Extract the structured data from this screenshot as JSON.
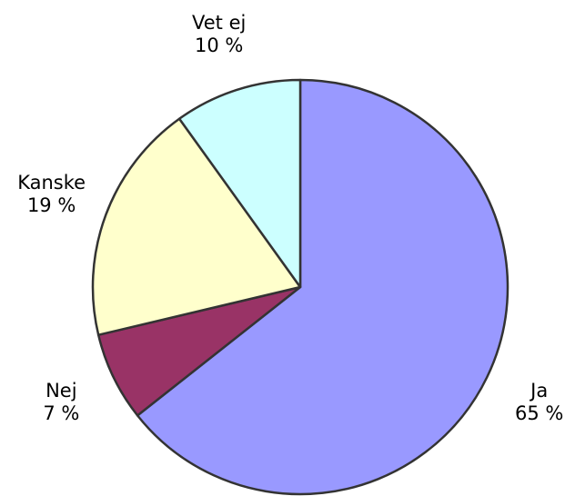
{
  "chart_data": {
    "type": "pie",
    "categories": [
      "Ja",
      "Nej",
      "Kanske",
      "Vet ej"
    ],
    "values": [
      65,
      7,
      19,
      10
    ],
    "value_labels": [
      "65 %",
      "7 %",
      "19 %",
      "10 %"
    ],
    "colors": [
      "#9999ff",
      "#993366",
      "#ffffcc",
      "#ccffff"
    ]
  }
}
